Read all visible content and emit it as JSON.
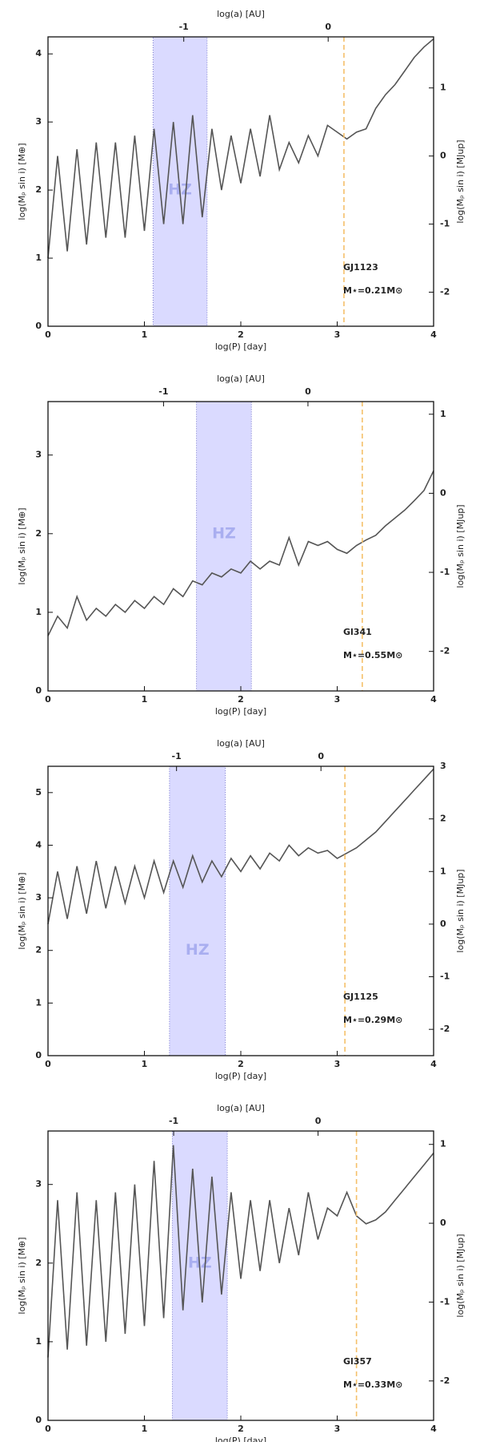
{
  "chart_data": [
    {
      "type": "line",
      "xlabel": "log(P) [day]",
      "x2label": "log(a) [AU]",
      "ylabel": "log(Mₚ sin i) [M⊕]",
      "y2label": "log(Mₚ sin i) [MJup]",
      "xlim": [
        0,
        4
      ],
      "xticks": [
        0,
        1,
        2,
        3,
        4
      ],
      "x2lim": [
        -1.94,
        0.73
      ],
      "x2ticks": [
        -1,
        0
      ],
      "ylim": [
        0,
        4.25
      ],
      "yticks": [
        0,
        1,
        2,
        3,
        4
      ],
      "y2lim": [
        -2.5,
        1.75
      ],
      "y2ticks": [
        -2,
        -1,
        0,
        1
      ],
      "hz": [
        1.09,
        1.65
      ],
      "hz_label": {
        "text": "HZ",
        "y": 2.0
      },
      "vline": 3.07,
      "star": "GJ1123",
      "mass": "M⋆=0.21M⊙",
      "color": "#555555",
      "x": [
        0,
        0.1,
        0.2,
        0.3,
        0.4,
        0.5,
        0.6,
        0.7,
        0.8,
        0.9,
        1.0,
        1.1,
        1.2,
        1.3,
        1.4,
        1.5,
        1.6,
        1.7,
        1.8,
        1.9,
        2.0,
        2.1,
        2.2,
        2.3,
        2.4,
        2.5,
        2.6,
        2.7,
        2.8,
        2.9,
        3.0,
        3.1,
        3.2,
        3.3,
        3.4,
        3.5,
        3.6,
        3.7,
        3.8,
        3.9,
        4.0
      ],
      "values": [
        1.0,
        2.5,
        1.1,
        2.6,
        1.2,
        2.7,
        1.3,
        2.7,
        1.3,
        2.8,
        1.4,
        2.9,
        1.5,
        3.0,
        1.5,
        3.1,
        1.6,
        2.9,
        2.0,
        2.8,
        2.1,
        2.9,
        2.2,
        3.1,
        2.3,
        2.7,
        2.4,
        2.8,
        2.5,
        2.95,
        2.85,
        2.75,
        2.85,
        2.9,
        3.2,
        3.4,
        3.55,
        3.75,
        3.95,
        4.1,
        4.22
      ]
    },
    {
      "type": "line",
      "xlabel": "log(P) [day]",
      "x2label": "log(a) [AU]",
      "ylabel": "log(Mₚ sin i) [M⊕]",
      "y2label": "log(Mₚ sin i) [MJup]",
      "xlim": [
        0,
        4
      ],
      "xticks": [
        0,
        1,
        2,
        3,
        4
      ],
      "x2lim": [
        -1.8,
        0.87
      ],
      "x2ticks": [
        -1,
        0
      ],
      "ylim": [
        0,
        3.68
      ],
      "yticks": [
        0,
        1,
        2,
        3
      ],
      "y2lim": [
        -2.5,
        1.16
      ],
      "y2ticks": [
        -2,
        -1,
        0,
        1
      ],
      "hz": [
        1.54,
        2.11
      ],
      "hz_label": {
        "text": "HZ",
        "y": 2.0
      },
      "vline": 3.26,
      "star": "Gl341",
      "mass": "M⋆=0.55M⊙",
      "color": "#555555",
      "x": [
        0,
        0.1,
        0.2,
        0.3,
        0.4,
        0.5,
        0.6,
        0.7,
        0.8,
        0.9,
        1.0,
        1.1,
        1.2,
        1.3,
        1.4,
        1.5,
        1.6,
        1.7,
        1.8,
        1.9,
        2.0,
        2.1,
        2.2,
        2.3,
        2.4,
        2.5,
        2.6,
        2.7,
        2.8,
        2.9,
        3.0,
        3.1,
        3.2,
        3.3,
        3.4,
        3.5,
        3.6,
        3.7,
        3.8,
        3.9,
        4.0
      ],
      "values": [
        0.7,
        0.95,
        0.8,
        1.2,
        0.9,
        1.05,
        0.95,
        1.1,
        1.0,
        1.15,
        1.05,
        1.2,
        1.1,
        1.3,
        1.2,
        1.4,
        1.35,
        1.5,
        1.45,
        1.55,
        1.5,
        1.65,
        1.55,
        1.65,
        1.6,
        1.95,
        1.6,
        1.9,
        1.85,
        1.9,
        1.8,
        1.75,
        1.85,
        1.92,
        1.98,
        2.1,
        2.2,
        2.3,
        2.42,
        2.55,
        2.8
      ]
    },
    {
      "type": "line",
      "xlabel": "log(P) [day]",
      "x2label": "log(a) [AU]",
      "ylabel": "log(Mₚ sin i) [M⊕]",
      "y2label": "log(Mₚ sin i) [MJup]",
      "xlim": [
        0,
        4
      ],
      "xticks": [
        0,
        1,
        2,
        3,
        4
      ],
      "x2lim": [
        -1.89,
        0.78
      ],
      "x2ticks": [
        -1,
        0
      ],
      "ylim": [
        0,
        5.5
      ],
      "yticks": [
        0,
        1,
        2,
        3,
        4,
        5
      ],
      "y2lim": [
        -2.5,
        3
      ],
      "y2ticks": [
        -2,
        -1,
        0,
        1,
        2,
        3
      ],
      "hz": [
        1.26,
        1.84
      ],
      "hz_label": {
        "text": "HZ",
        "y": 2.0
      },
      "vline": 3.08,
      "star": "GJ1125",
      "mass": "M⋆=0.29M⊙",
      "color": "#555555",
      "x": [
        0,
        0.1,
        0.2,
        0.3,
        0.4,
        0.5,
        0.6,
        0.7,
        0.8,
        0.9,
        1.0,
        1.1,
        1.2,
        1.3,
        1.4,
        1.5,
        1.6,
        1.7,
        1.8,
        1.9,
        2.0,
        2.1,
        2.2,
        2.3,
        2.4,
        2.5,
        2.6,
        2.7,
        2.8,
        2.9,
        3.0,
        3.1,
        3.2,
        3.3,
        3.4,
        3.5,
        3.6,
        3.7,
        3.8,
        3.9,
        4.0
      ],
      "values": [
        2.5,
        3.5,
        2.6,
        3.6,
        2.7,
        3.7,
        2.8,
        3.6,
        2.9,
        3.6,
        3.0,
        3.7,
        3.1,
        3.7,
        3.2,
        3.8,
        3.3,
        3.7,
        3.4,
        3.75,
        3.5,
        3.8,
        3.55,
        3.85,
        3.7,
        4.0,
        3.8,
        3.95,
        3.85,
        3.9,
        3.75,
        3.85,
        3.95,
        4.1,
        4.25,
        4.45,
        4.65,
        4.85,
        5.05,
        5.25,
        5.45
      ]
    },
    {
      "type": "line",
      "xlabel": "log(P) [day]",
      "x2label": "log(a) [AU]",
      "ylabel": "log(Mₚ sin i) [M⊕]",
      "y2label": "log(Mₚ sin i) [MJup]",
      "xlim": [
        0,
        4
      ],
      "xticks": [
        0,
        1,
        2,
        3,
        4
      ],
      "x2lim": [
        -1.87,
        0.8
      ],
      "x2ticks": [
        -1,
        0
      ],
      "ylim": [
        0,
        3.68
      ],
      "yticks": [
        0,
        1,
        2,
        3
      ],
      "y2lim": [
        -2.5,
        1.17
      ],
      "y2ticks": [
        -2,
        -1,
        0,
        1
      ],
      "hz": [
        1.29,
        1.86
      ],
      "hz_label": {
        "text": "HZ",
        "y": 2.0
      },
      "vline": 3.2,
      "star": "Gl357",
      "mass": "M⋆=0.33M⊙",
      "color": "#555555",
      "x": [
        0,
        0.1,
        0.2,
        0.3,
        0.4,
        0.5,
        0.6,
        0.7,
        0.8,
        0.9,
        1.0,
        1.1,
        1.2,
        1.3,
        1.4,
        1.5,
        1.6,
        1.7,
        1.8,
        1.9,
        2.0,
        2.1,
        2.2,
        2.3,
        2.4,
        2.5,
        2.6,
        2.7,
        2.8,
        2.9,
        3.0,
        3.1,
        3.2,
        3.3,
        3.4,
        3.5,
        3.6,
        3.7,
        3.8,
        3.9,
        4.0
      ],
      "values": [
        0.8,
        2.8,
        0.9,
        2.9,
        0.95,
        2.8,
        1.0,
        2.9,
        1.1,
        3.0,
        1.2,
        3.3,
        1.3,
        3.5,
        1.4,
        3.2,
        1.5,
        3.1,
        1.6,
        2.9,
        1.8,
        2.8,
        1.9,
        2.8,
        2.0,
        2.7,
        2.1,
        2.9,
        2.3,
        2.7,
        2.6,
        2.9,
        2.6,
        2.5,
        2.55,
        2.65,
        2.8,
        2.95,
        3.1,
        3.25,
        3.4
      ]
    }
  ]
}
